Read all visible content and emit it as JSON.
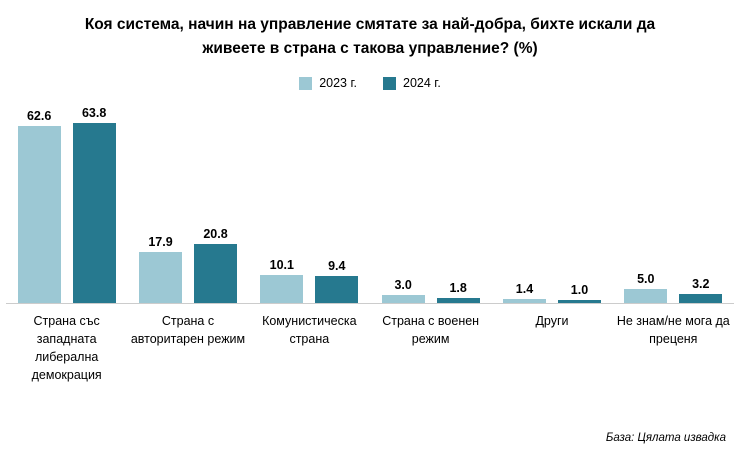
{
  "title": "Коя система, начин на управление смятате за най-добра, бихте искали да живеете в страна с такова управление? (%)",
  "footnote": "База: Цялата извадка",
  "colors": {
    "series_2023": "#9cc8d4",
    "series_2024": "#26798f"
  },
  "chart_data": {
    "type": "bar",
    "title": "Коя система, начин на управление смятате за най-добра, бихте искали да живеете в страна с такова управление? (%)",
    "categories": [
      "Страна със западната либерална демокрация",
      "Страна с авторитарен режим",
      "Комунистическа страна",
      "Страна с военен режим",
      "Други",
      "Не знам/не мога да преценя"
    ],
    "series": [
      {
        "name": "2023 г.",
        "color": "#9cc8d4",
        "values": [
          62.6,
          17.9,
          10.1,
          3.0,
          1.4,
          5.0
        ]
      },
      {
        "name": "2024 г.",
        "color": "#26798f",
        "values": [
          63.8,
          20.8,
          9.4,
          1.8,
          1.0,
          3.2
        ]
      }
    ],
    "ylim": [
      0,
      70
    ],
    "grid": false,
    "legend_position": "top",
    "value_labels": true,
    "xlabel": "",
    "ylabel": ""
  }
}
